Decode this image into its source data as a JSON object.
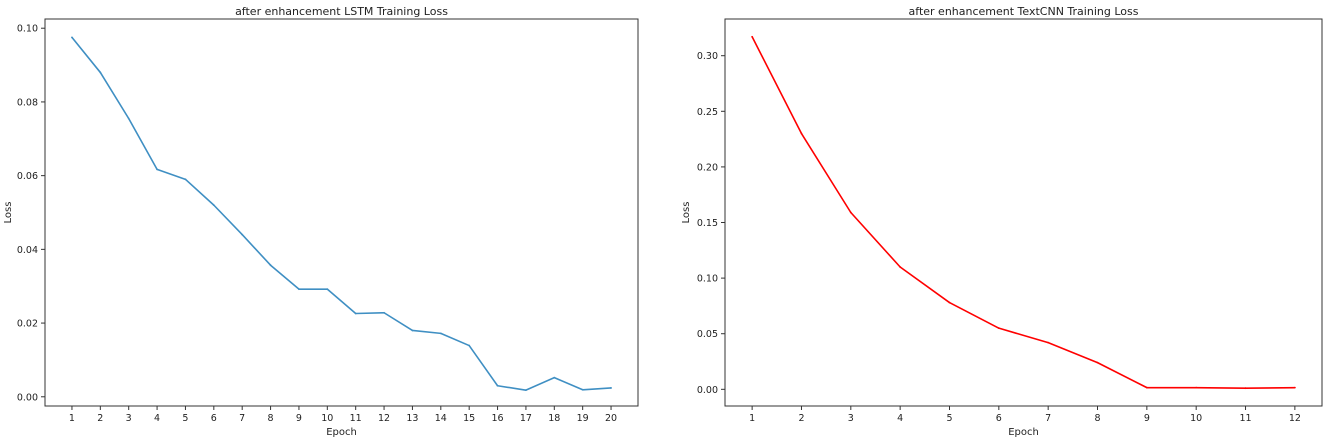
{
  "chart_data": [
    {
      "type": "line",
      "title": "after enhancement LSTM Training Loss",
      "xlabel": "Epoch",
      "ylabel": "Loss",
      "x": [
        1,
        2,
        3,
        4,
        5,
        6,
        7,
        8,
        9,
        10,
        11,
        12,
        13,
        14,
        15,
        16,
        17,
        18,
        19,
        20
      ],
      "xticks": [
        "1",
        "2",
        "3",
        "4",
        "5",
        "6",
        "7",
        "8",
        "9",
        "10",
        "11",
        "12",
        "13",
        "14",
        "15",
        "16",
        "17",
        "18",
        "19",
        "20"
      ],
      "yticks": [
        "0.00",
        "0.02",
        "0.04",
        "0.06",
        "0.08",
        "0.10"
      ],
      "ytick_values": [
        0,
        0.02,
        0.04,
        0.06,
        0.08,
        0.1
      ],
      "ylim": [
        -0.0025,
        0.1025
      ],
      "xlim": [
        0.05,
        20.95
      ],
      "grid": false,
      "series": [
        {
          "color": "#3f8fc3",
          "values": [
            0.0975,
            0.088,
            0.0755,
            0.0617,
            0.059,
            0.052,
            0.044,
            0.0357,
            0.0292,
            0.0292,
            0.0226,
            0.0228,
            0.018,
            0.0172,
            0.0139,
            0.003,
            0.0018,
            0.0052,
            0.0019,
            0.0024
          ]
        }
      ]
    },
    {
      "type": "line",
      "title": "after enhancement TextCNN Training Loss",
      "xlabel": "Epoch",
      "ylabel": "Loss",
      "x": [
        1,
        2,
        3,
        4,
        5,
        6,
        7,
        8,
        9,
        10,
        11,
        12
      ],
      "xticks": [
        "1",
        "2",
        "3",
        "4",
        "5",
        "6",
        "7",
        "8",
        "9",
        "10",
        "11",
        "12"
      ],
      "yticks": [
        "0.00",
        "0.05",
        "0.10",
        "0.15",
        "0.20",
        "0.25",
        "0.30"
      ],
      "ytick_values": [
        0,
        0.05,
        0.1,
        0.15,
        0.2,
        0.25,
        0.3
      ],
      "ylim": [
        -0.015,
        0.333
      ],
      "xlim": [
        0.45,
        12.55
      ],
      "grid": false,
      "series": [
        {
          "color": "#ff0000",
          "values": [
            0.317,
            0.23,
            0.159,
            0.11,
            0.078,
            0.055,
            0.042,
            0.024,
            0.0015,
            0.0015,
            0.001,
            0.0015
          ]
        }
      ]
    }
  ]
}
